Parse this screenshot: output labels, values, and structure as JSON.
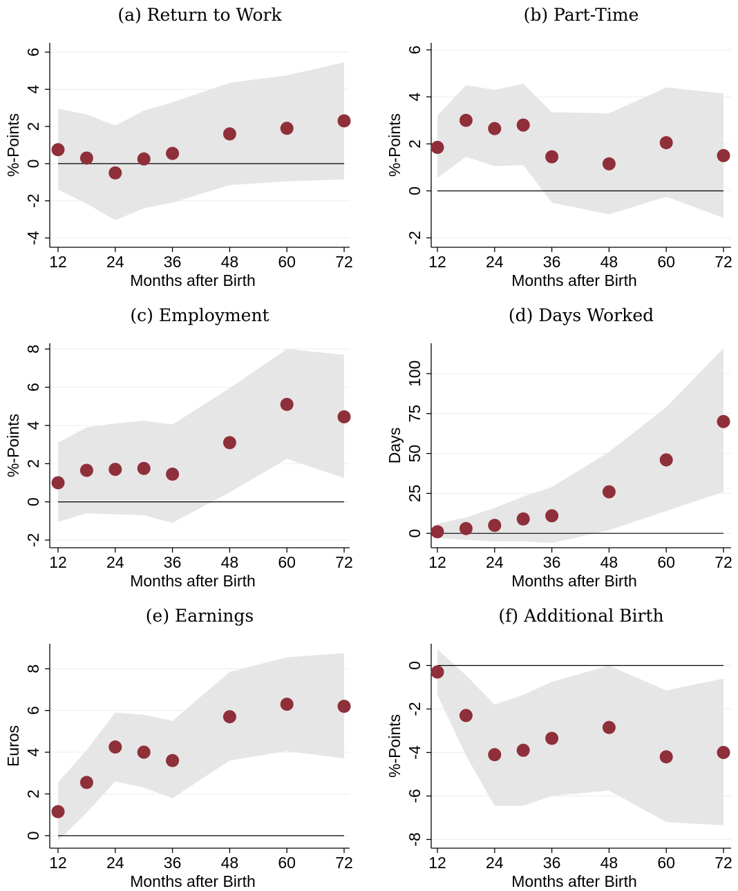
{
  "figure": {
    "colors": {
      "point": "#8f2f3a",
      "band": "#e6e6e6",
      "axis": "#000000",
      "grid": "#ececec"
    }
  },
  "chart_data": [
    {
      "id": "a",
      "type": "scatter",
      "title": "(a) Return to Work",
      "xlabel": "Months after Birth",
      "ylabel": "%-Points",
      "x_ticks": [
        12,
        24,
        36,
        48,
        60,
        72
      ],
      "x_range": [
        12,
        72
      ],
      "y_ticks": [
        -4,
        -2,
        0,
        2,
        4,
        6
      ],
      "y_range": [
        -4.5,
        6.5
      ],
      "zero_line": 0,
      "grid": true,
      "points": [
        [
          12,
          0.75
        ],
        [
          18,
          0.3
        ],
        [
          24,
          -0.5
        ],
        [
          30,
          0.25
        ],
        [
          36,
          0.55
        ],
        [
          48,
          1.6
        ],
        [
          60,
          1.9
        ],
        [
          72,
          2.3
        ]
      ],
      "ci_upper": [
        [
          12,
          2.95
        ],
        [
          18,
          2.65
        ],
        [
          24,
          2.05
        ],
        [
          30,
          2.85
        ],
        [
          36,
          3.3
        ],
        [
          48,
          4.35
        ],
        [
          60,
          4.75
        ],
        [
          72,
          5.45
        ]
      ],
      "ci_lower": [
        [
          12,
          -1.4
        ],
        [
          18,
          -2.15
        ],
        [
          24,
          -3.05
        ],
        [
          30,
          -2.4
        ],
        [
          36,
          -2.1
        ],
        [
          48,
          -1.15
        ],
        [
          60,
          -0.95
        ],
        [
          72,
          -0.85
        ]
      ]
    },
    {
      "id": "b",
      "type": "scatter",
      "title": "(b) Part-Time",
      "xlabel": "Months after Birth",
      "ylabel": "%-Points",
      "x_ticks": [
        12,
        24,
        36,
        48,
        60,
        72
      ],
      "x_range": [
        12,
        72
      ],
      "y_ticks": [
        -2,
        0,
        2,
        4,
        6
      ],
      "y_range": [
        -2.4,
        6.3
      ],
      "zero_line": 0,
      "grid": true,
      "points": [
        [
          12,
          1.85
        ],
        [
          18,
          3.0
        ],
        [
          24,
          2.65
        ],
        [
          30,
          2.8
        ],
        [
          36,
          1.45
        ],
        [
          48,
          1.15
        ],
        [
          60,
          2.05
        ],
        [
          72,
          1.5
        ]
      ],
      "ci_upper": [
        [
          12,
          3.2
        ],
        [
          18,
          4.5
        ],
        [
          24,
          4.3
        ],
        [
          30,
          4.55
        ],
        [
          36,
          3.35
        ],
        [
          48,
          3.3
        ],
        [
          60,
          4.4
        ],
        [
          72,
          4.15
        ]
      ],
      "ci_lower": [
        [
          12,
          0.55
        ],
        [
          18,
          1.45
        ],
        [
          24,
          1.05
        ],
        [
          30,
          1.1
        ],
        [
          36,
          -0.5
        ],
        [
          48,
          -1.0
        ],
        [
          60,
          -0.25
        ],
        [
          72,
          -1.15
        ]
      ]
    },
    {
      "id": "c",
      "type": "scatter",
      "title": "(c) Employment",
      "xlabel": "Months after Birth",
      "ylabel": "%-Points",
      "x_ticks": [
        12,
        24,
        36,
        48,
        60,
        72
      ],
      "x_range": [
        12,
        72
      ],
      "y_ticks": [
        -2,
        0,
        2,
        4,
        6,
        8
      ],
      "y_range": [
        -2.4,
        8.3
      ],
      "zero_line": 0,
      "grid": true,
      "points": [
        [
          12,
          1.0
        ],
        [
          18,
          1.65
        ],
        [
          24,
          1.7
        ],
        [
          30,
          1.75
        ],
        [
          36,
          1.45
        ],
        [
          48,
          3.1
        ],
        [
          60,
          5.1
        ],
        [
          72,
          4.45
        ]
      ],
      "ci_upper": [
        [
          12,
          3.1
        ],
        [
          18,
          3.9
        ],
        [
          24,
          4.1
        ],
        [
          30,
          4.25
        ],
        [
          36,
          4.05
        ],
        [
          48,
          5.95
        ],
        [
          60,
          8.0
        ],
        [
          72,
          7.7
        ]
      ],
      "ci_lower": [
        [
          12,
          -1.05
        ],
        [
          18,
          -0.6
        ],
        [
          24,
          -0.65
        ],
        [
          30,
          -0.7
        ],
        [
          36,
          -1.1
        ],
        [
          48,
          0.5
        ],
        [
          60,
          2.25
        ],
        [
          72,
          1.25
        ]
      ]
    },
    {
      "id": "d",
      "type": "scatter",
      "title": "(d) Days Worked",
      "xlabel": "Months after Birth",
      "ylabel": "Days",
      "x_ticks": [
        12,
        24,
        36,
        48,
        60,
        72
      ],
      "x_range": [
        12,
        72
      ],
      "y_ticks": [
        0,
        25,
        50,
        75,
        100
      ],
      "y_range": [
        -9,
        119
      ],
      "zero_line": 0,
      "grid": true,
      "points": [
        [
          12,
          1
        ],
        [
          18,
          3
        ],
        [
          24,
          5
        ],
        [
          30,
          9
        ],
        [
          36,
          11
        ],
        [
          48,
          26
        ],
        [
          60,
          46
        ],
        [
          72,
          70
        ]
      ],
      "ci_upper": [
        [
          12,
          6
        ],
        [
          18,
          10
        ],
        [
          24,
          16
        ],
        [
          30,
          23
        ],
        [
          36,
          29
        ],
        [
          48,
          51
        ],
        [
          60,
          79
        ],
        [
          72,
          116
        ]
      ],
      "ci_lower": [
        [
          12,
          -3
        ],
        [
          18,
          -4
        ],
        [
          24,
          -5
        ],
        [
          30,
          -5
        ],
        [
          36,
          -6
        ],
        [
          48,
          2
        ],
        [
          60,
          14
        ],
        [
          72,
          26
        ]
      ]
    },
    {
      "id": "e",
      "type": "scatter",
      "title": "(e) Earnings",
      "xlabel": "Months after Birth",
      "ylabel": "Euros",
      "x_ticks": [
        12,
        24,
        36,
        48,
        60,
        72
      ],
      "x_range": [
        12,
        72
      ],
      "y_ticks": [
        0,
        2,
        4,
        6,
        8
      ],
      "y_range": [
        -0.6,
        9.2
      ],
      "zero_line": 0,
      "grid": true,
      "points": [
        [
          12,
          1.15
        ],
        [
          18,
          2.55
        ],
        [
          24,
          4.25
        ],
        [
          30,
          4.0
        ],
        [
          36,
          3.6
        ],
        [
          48,
          5.7
        ],
        [
          60,
          6.3
        ],
        [
          72,
          6.2
        ]
      ],
      "ci_upper": [
        [
          12,
          2.55
        ],
        [
          18,
          4.1
        ],
        [
          24,
          5.9
        ],
        [
          30,
          5.8
        ],
        [
          36,
          5.5
        ],
        [
          48,
          7.85
        ],
        [
          60,
          8.55
        ],
        [
          72,
          8.75
        ]
      ],
      "ci_lower": [
        [
          12,
          -0.25
        ],
        [
          18,
          1.1
        ],
        [
          24,
          2.6
        ],
        [
          30,
          2.3
        ],
        [
          36,
          1.8
        ],
        [
          48,
          3.6
        ],
        [
          60,
          4.05
        ],
        [
          72,
          3.7
        ]
      ]
    },
    {
      "id": "f",
      "type": "scatter",
      "title": "(f) Additional Birth",
      "xlabel": "Months after Birth",
      "ylabel": "%-Points",
      "x_ticks": [
        12,
        24,
        36,
        48,
        60,
        72
      ],
      "x_range": [
        12,
        72
      ],
      "y_ticks": [
        -8,
        -6,
        -4,
        -2,
        0
      ],
      "y_range": [
        -8.4,
        1.0
      ],
      "zero_line": 0,
      "grid": true,
      "points": [
        [
          12,
          -0.3
        ],
        [
          18,
          -2.3
        ],
        [
          24,
          -4.1
        ],
        [
          30,
          -3.9
        ],
        [
          36,
          -3.35
        ],
        [
          48,
          -2.85
        ],
        [
          60,
          -4.2
        ],
        [
          72,
          -4.0
        ]
      ],
      "ci_upper": [
        [
          12,
          0.75
        ],
        [
          18,
          -0.45
        ],
        [
          24,
          -1.8
        ],
        [
          30,
          -1.35
        ],
        [
          36,
          -0.75
        ],
        [
          48,
          0.0
        ],
        [
          60,
          -1.15
        ],
        [
          72,
          -0.6
        ]
      ],
      "ci_lower": [
        [
          12,
          -1.35
        ],
        [
          18,
          -4.15
        ],
        [
          24,
          -6.45
        ],
        [
          30,
          -6.45
        ],
        [
          36,
          -6.0
        ],
        [
          48,
          -5.75
        ],
        [
          60,
          -7.2
        ],
        [
          72,
          -7.35
        ]
      ]
    }
  ]
}
